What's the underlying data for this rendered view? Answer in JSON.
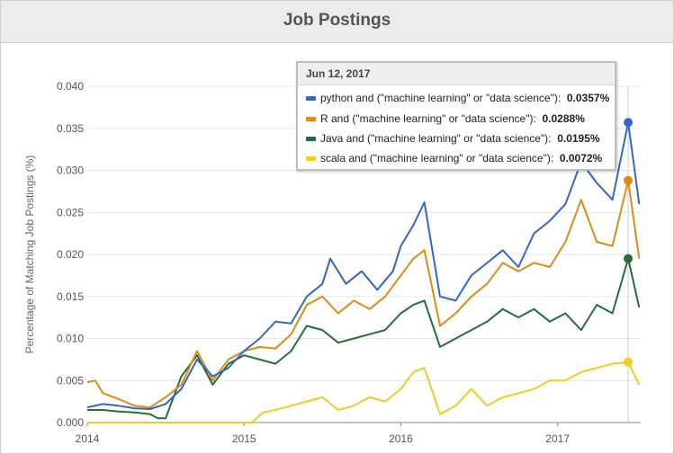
{
  "panel": {
    "title": "Job Postings"
  },
  "chart_data": {
    "type": "line",
    "ylabel": "Percentage of Matching Job Postings (%)",
    "xlabel": "",
    "ylim": [
      0,
      0.04
    ],
    "y_ticks": [
      "0.000",
      "0.005",
      "0.010",
      "0.015",
      "0.020",
      "0.025",
      "0.030",
      "0.035",
      "0.040"
    ],
    "x_ticks": [
      "2014",
      "2015",
      "2016",
      "2017"
    ],
    "grid": true,
    "series": [
      {
        "name": "python and (\"machine learning\" or \"data science\")",
        "color": "#3366cc",
        "points": [
          [
            2014.0,
            0.0018
          ],
          [
            2014.1,
            0.0022
          ],
          [
            2014.2,
            0.002
          ],
          [
            2014.3,
            0.0017
          ],
          [
            2014.4,
            0.0016
          ],
          [
            2014.5,
            0.0022
          ],
          [
            2014.6,
            0.004
          ],
          [
            2014.7,
            0.0075
          ],
          [
            2014.8,
            0.0055
          ],
          [
            2014.9,
            0.0065
          ],
          [
            2015.0,
            0.0085
          ],
          [
            2015.1,
            0.01
          ],
          [
            2015.2,
            0.012
          ],
          [
            2015.3,
            0.0118
          ],
          [
            2015.4,
            0.015
          ],
          [
            2015.5,
            0.0165
          ],
          [
            2015.55,
            0.0195
          ],
          [
            2015.65,
            0.0165
          ],
          [
            2015.75,
            0.018
          ],
          [
            2015.85,
            0.0158
          ],
          [
            2015.95,
            0.018
          ],
          [
            2016.0,
            0.021
          ],
          [
            2016.08,
            0.0235
          ],
          [
            2016.15,
            0.0262
          ],
          [
            2016.25,
            0.015
          ],
          [
            2016.35,
            0.0145
          ],
          [
            2016.45,
            0.0175
          ],
          [
            2016.55,
            0.019
          ],
          [
            2016.65,
            0.0205
          ],
          [
            2016.75,
            0.0185
          ],
          [
            2016.85,
            0.0225
          ],
          [
            2016.95,
            0.024
          ],
          [
            2017.05,
            0.026
          ],
          [
            2017.15,
            0.031
          ],
          [
            2017.25,
            0.0285
          ],
          [
            2017.35,
            0.0265
          ],
          [
            2017.45,
            0.0357
          ],
          [
            2017.52,
            0.026
          ]
        ]
      },
      {
        "name": "R and (\"machine learning\" or \"data science\")",
        "color": "#e08a16",
        "points": [
          [
            2014.0,
            0.0048
          ],
          [
            2014.05,
            0.005
          ],
          [
            2014.1,
            0.0035
          ],
          [
            2014.2,
            0.0028
          ],
          [
            2014.3,
            0.002
          ],
          [
            2014.4,
            0.0018
          ],
          [
            2014.5,
            0.003
          ],
          [
            2014.6,
            0.0045
          ],
          [
            2014.7,
            0.0085
          ],
          [
            2014.8,
            0.005
          ],
          [
            2014.9,
            0.0075
          ],
          [
            2015.0,
            0.0085
          ],
          [
            2015.1,
            0.009
          ],
          [
            2015.2,
            0.0088
          ],
          [
            2015.3,
            0.0105
          ],
          [
            2015.4,
            0.014
          ],
          [
            2015.5,
            0.015
          ],
          [
            2015.6,
            0.013
          ],
          [
            2015.7,
            0.0145
          ],
          [
            2015.8,
            0.0135
          ],
          [
            2015.9,
            0.015
          ],
          [
            2016.0,
            0.0175
          ],
          [
            2016.08,
            0.0195
          ],
          [
            2016.15,
            0.0205
          ],
          [
            2016.25,
            0.0115
          ],
          [
            2016.35,
            0.013
          ],
          [
            2016.45,
            0.015
          ],
          [
            2016.55,
            0.0165
          ],
          [
            2016.65,
            0.019
          ],
          [
            2016.75,
            0.018
          ],
          [
            2016.85,
            0.019
          ],
          [
            2016.95,
            0.0185
          ],
          [
            2017.05,
            0.0215
          ],
          [
            2017.15,
            0.0265
          ],
          [
            2017.25,
            0.0215
          ],
          [
            2017.35,
            0.021
          ],
          [
            2017.45,
            0.0288
          ],
          [
            2017.52,
            0.0195
          ]
        ]
      },
      {
        "name": "Java and (\"machine learning\" or \"data science\")",
        "color": "#256e3a",
        "points": [
          [
            2014.0,
            0.0015
          ],
          [
            2014.1,
            0.0015
          ],
          [
            2014.2,
            0.0013
          ],
          [
            2014.3,
            0.0012
          ],
          [
            2014.4,
            0.001
          ],
          [
            2014.45,
            0.0005
          ],
          [
            2014.5,
            0.0005
          ],
          [
            2014.6,
            0.0055
          ],
          [
            2014.7,
            0.008
          ],
          [
            2014.8,
            0.0045
          ],
          [
            2014.9,
            0.007
          ],
          [
            2015.0,
            0.008
          ],
          [
            2015.1,
            0.0075
          ],
          [
            2015.2,
            0.007
          ],
          [
            2015.3,
            0.0085
          ],
          [
            2015.4,
            0.0115
          ],
          [
            2015.5,
            0.011
          ],
          [
            2015.6,
            0.0095
          ],
          [
            2015.7,
            0.01
          ],
          [
            2015.8,
            0.0105
          ],
          [
            2015.9,
            0.011
          ],
          [
            2016.0,
            0.013
          ],
          [
            2016.08,
            0.014
          ],
          [
            2016.15,
            0.0145
          ],
          [
            2016.25,
            0.009
          ],
          [
            2016.35,
            0.01
          ],
          [
            2016.45,
            0.011
          ],
          [
            2016.55,
            0.012
          ],
          [
            2016.65,
            0.0135
          ],
          [
            2016.75,
            0.0125
          ],
          [
            2016.85,
            0.0135
          ],
          [
            2016.95,
            0.012
          ],
          [
            2017.05,
            0.013
          ],
          [
            2017.15,
            0.011
          ],
          [
            2017.25,
            0.014
          ],
          [
            2017.35,
            0.013
          ],
          [
            2017.45,
            0.0195
          ],
          [
            2017.52,
            0.0137
          ]
        ]
      },
      {
        "name": "scala and (\"machine learning\" or \"data science\")",
        "color": "#f2cc1f",
        "points": [
          [
            2014.0,
            0.0
          ],
          [
            2014.3,
            0.0
          ],
          [
            2014.6,
            0.0
          ],
          [
            2014.9,
            0.0
          ],
          [
            2015.05,
            0.0
          ],
          [
            2015.12,
            0.0012
          ],
          [
            2015.2,
            0.0015
          ],
          [
            2015.3,
            0.002
          ],
          [
            2015.4,
            0.0025
          ],
          [
            2015.5,
            0.003
          ],
          [
            2015.6,
            0.0015
          ],
          [
            2015.7,
            0.002
          ],
          [
            2015.8,
            0.003
          ],
          [
            2015.9,
            0.0025
          ],
          [
            2016.0,
            0.004
          ],
          [
            2016.08,
            0.006
          ],
          [
            2016.15,
            0.0065
          ],
          [
            2016.25,
            0.001
          ],
          [
            2016.35,
            0.002
          ],
          [
            2016.45,
            0.004
          ],
          [
            2016.55,
            0.002
          ],
          [
            2016.65,
            0.003
          ],
          [
            2016.75,
            0.0035
          ],
          [
            2016.85,
            0.004
          ],
          [
            2016.95,
            0.005
          ],
          [
            2017.05,
            0.005
          ],
          [
            2017.15,
            0.006
          ],
          [
            2017.25,
            0.0065
          ],
          [
            2017.35,
            0.007
          ],
          [
            2017.45,
            0.0072
          ],
          [
            2017.52,
            0.0045
          ]
        ]
      }
    ]
  },
  "tooltip": {
    "date": "Jun 12, 2017",
    "rows": [
      {
        "label": "python and (\"machine learning\" or \"data science\"):",
        "value": "0.0357%",
        "color": "#3366cc"
      },
      {
        "label": "R and (\"machine learning\" or \"data science\"):",
        "value": "0.0288%",
        "color": "#e08a16"
      },
      {
        "label": "Java and (\"machine learning\" or \"data science\"):",
        "value": "0.0195%",
        "color": "#256e3a"
      },
      {
        "label": "scala and (\"machine learning\" or \"data science\"):",
        "value": "0.0072%",
        "color": "#f2cc1f"
      }
    ]
  }
}
